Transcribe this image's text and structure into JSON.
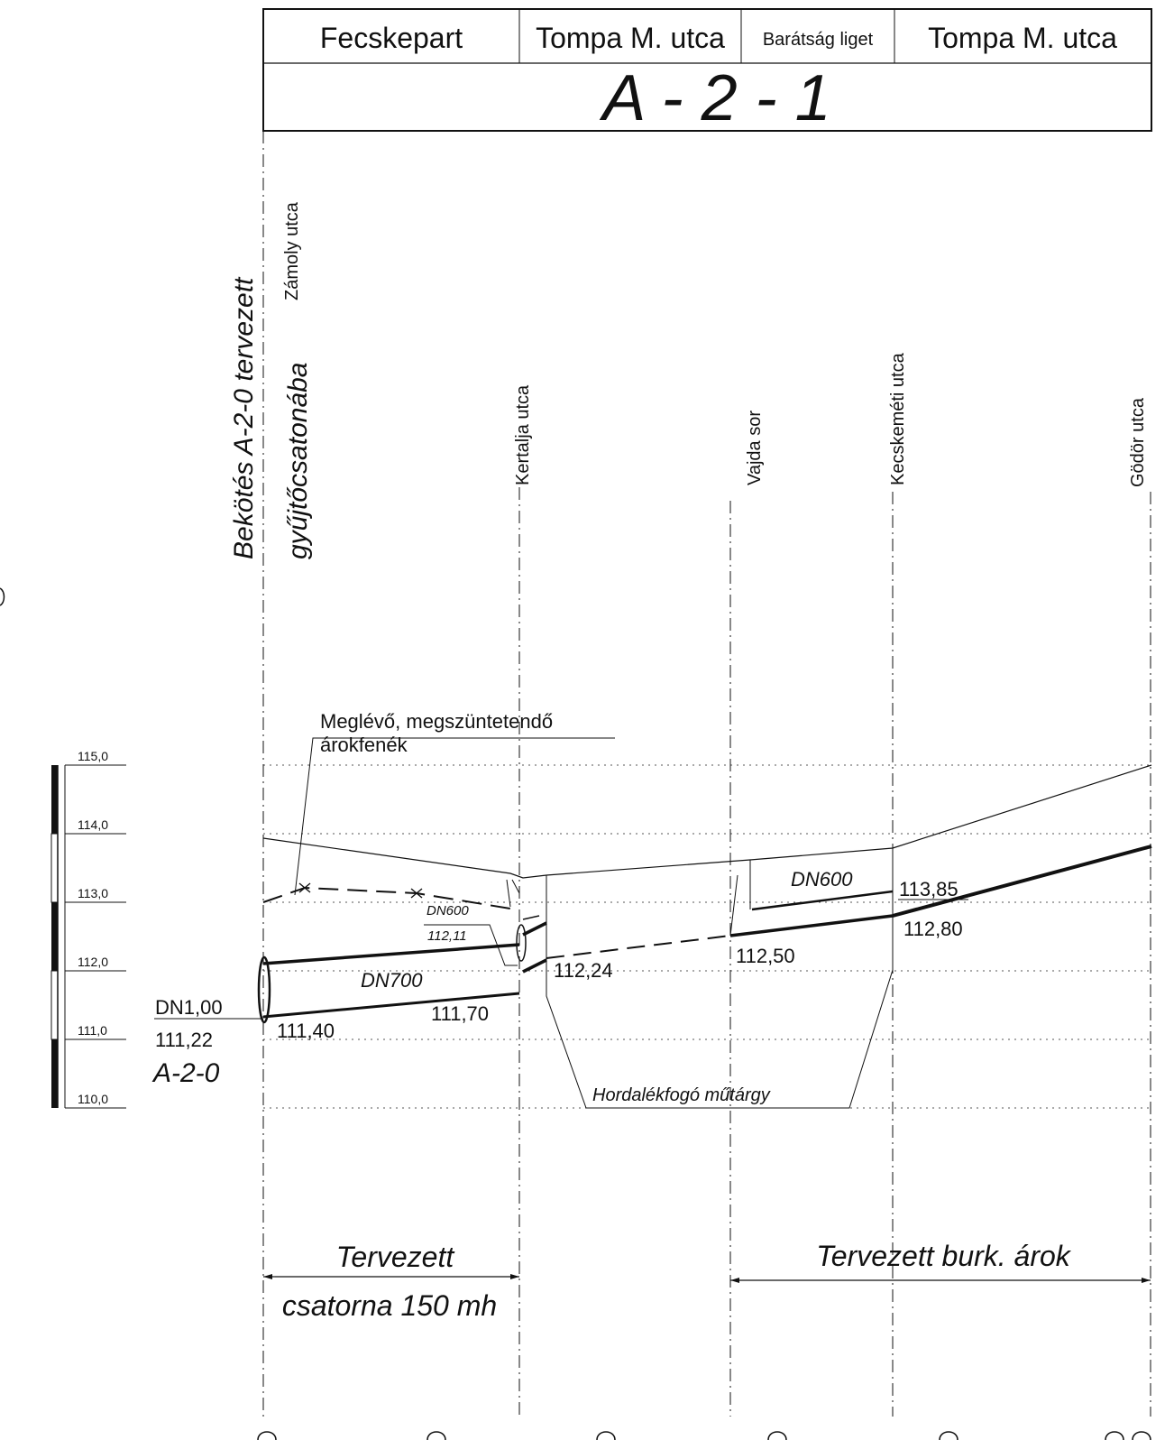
{
  "header": {
    "streets": [
      "Fecskepart",
      "Tompa M. utca",
      "Barátság liget",
      "Tompa M. utca"
    ],
    "section_code": "A - 2 - 1"
  },
  "verticals": {
    "connection_line1": "Bekötés A-2-0 tervezett",
    "connection_line2": "gyűjtőcsatonába",
    "zamoly": "Zámoly utca",
    "kertalja": "Kertalja utca",
    "vajda": "Vajda sor",
    "kecskemeti": "Kecskeméti utca",
    "godor": "Gödör utca"
  },
  "scale": {
    "ticks": [
      "115,0",
      "114,0",
      "113,0",
      "112,0",
      "111,0",
      "110,0"
    ]
  },
  "annotations": {
    "existing_line1": "Meglévő, megszüntetendő",
    "existing_line2": "árokfenék",
    "dn600_small": "DN600",
    "level_small": "112,11",
    "dn700": "DN700",
    "dn600": "DN600",
    "left_dn": "DN1,00",
    "left_level": "111,22",
    "left_node": "A-2-0",
    "lvl_111_40": "111,40",
    "lvl_111_70": "111,70",
    "lvl_112_24": "112,24",
    "lvl_112_50": "112,50",
    "lvl_113_85": "113,85",
    "lvl_112_80": "112,80",
    "silt_trap": "Hordalékfogó műtárgy"
  },
  "footer": {
    "pipe_line1": "Tervezett",
    "pipe_line2": "csatorna 150 mh",
    "ditch": "Tervezett burk. árok"
  }
}
